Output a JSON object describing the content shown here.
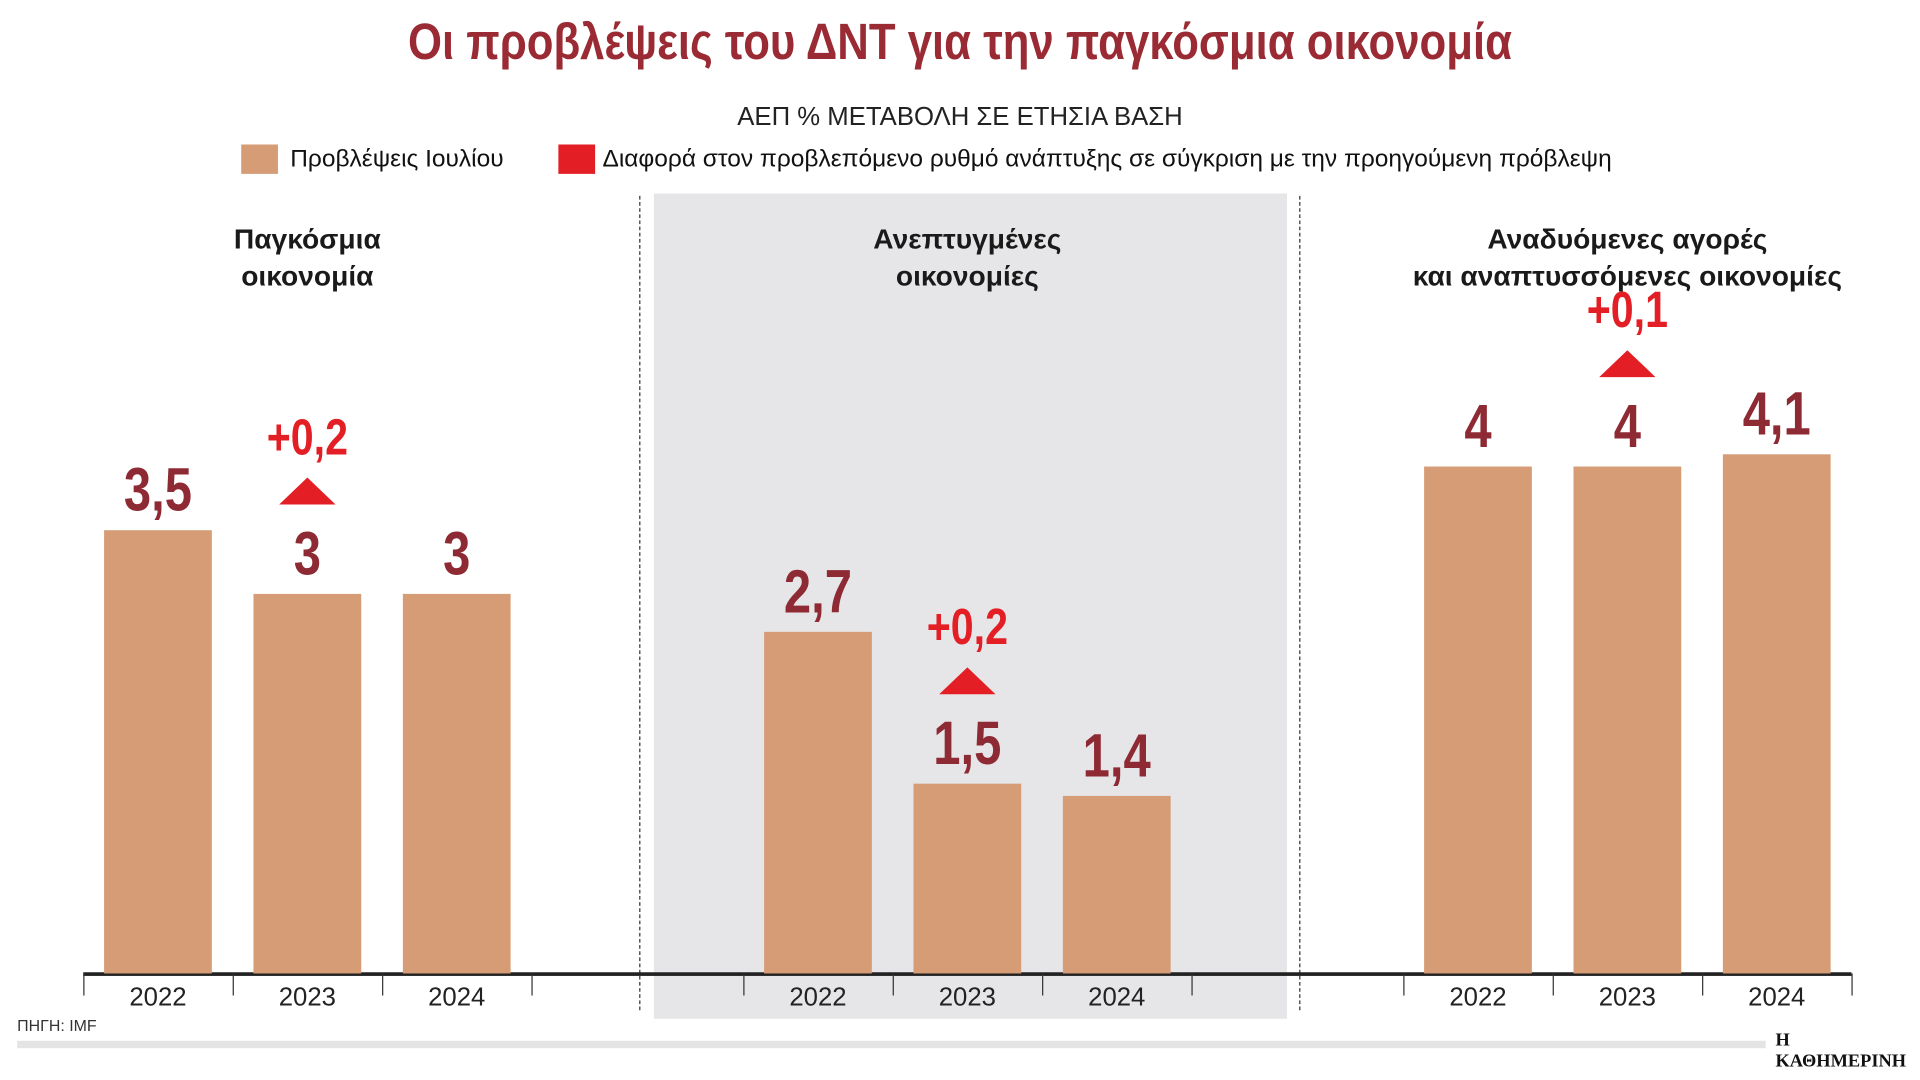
{
  "chart_data": {
    "type": "bar",
    "title": "Οι προβλέψεις του ΔΝΤ για την παγκόσμια οικονομία",
    "subtitle": "ΑΕΠ % ΜΕΤΑΒΟΛΗ ΣΕ ΕΤΗΣΙΑ ΒΑΣΗ",
    "legend": [
      {
        "label": "Προβλέψεις Ιουλίου",
        "color": "#d69c76"
      },
      {
        "label": "Διαφορά στον προβλεπόμενο ρυθμό ανάπτυξης σε σύγκριση με την προηγούμενη πρόβλεψη",
        "color": "#e31e24"
      }
    ],
    "categories": [
      "2022",
      "2023",
      "2024"
    ],
    "ylim": [
      0,
      4.5
    ],
    "panels": [
      {
        "title_lines": [
          "Παγκόσμια",
          "οικονομία"
        ],
        "values": [
          3.5,
          3,
          3
        ],
        "labels": [
          "3,5",
          "3",
          "3"
        ],
        "delta": {
          "index": 1,
          "label": "+0,2",
          "value": 0.2
        }
      },
      {
        "title_lines": [
          "Ανεπτυγμένες",
          "οικονομίες"
        ],
        "values": [
          2.7,
          1.5,
          1.4
        ],
        "labels": [
          "2,7",
          "1,5",
          "1,4"
        ],
        "delta": {
          "index": 1,
          "label": "+0,2",
          "value": 0.2
        }
      },
      {
        "title_lines": [
          "Αναδυόμενες αγορές",
          "και αναπτυσσόμενες οικονομίες"
        ],
        "values": [
          4,
          4,
          4.1
        ],
        "labels": [
          "4",
          "4",
          "4,1"
        ],
        "delta": {
          "index": 1,
          "label": "+0,1",
          "value": 0.1
        }
      }
    ]
  },
  "footer": {
    "source": "ΠΗΓΗ: IMF",
    "brand": "Η ΚΑΘΗΜΕΡΙΝΗ"
  }
}
